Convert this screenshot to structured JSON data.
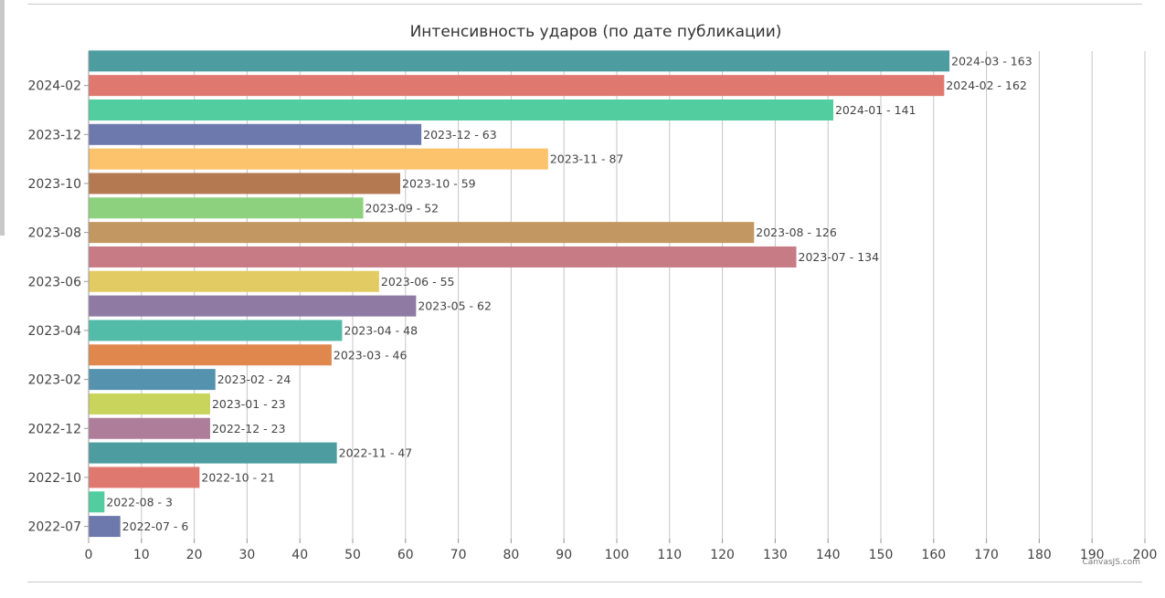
{
  "chart_data": {
    "type": "bar",
    "orientation": "horizontal",
    "title": "Интенсивность ударов (по дате публикации)",
    "xlabel": "",
    "ylabel": "",
    "xlim": [
      0,
      200
    ],
    "x_ticks": [
      0,
      10,
      20,
      30,
      40,
      50,
      60,
      70,
      80,
      90,
      100,
      110,
      120,
      130,
      140,
      150,
      160,
      170,
      180,
      190,
      200
    ],
    "grid": true,
    "categories": [
      "2022-07",
      "2022-08",
      "2022-10",
      "2022-11",
      "2022-12",
      "2023-01",
      "2023-02",
      "2023-03",
      "2023-04",
      "2023-05",
      "2023-06",
      "2023-07",
      "2023-08",
      "2023-09",
      "2023-10",
      "2023-11",
      "2023-12",
      "2024-01",
      "2024-02",
      "2024-03"
    ],
    "values": [
      6,
      3,
      21,
      47,
      23,
      23,
      24,
      46,
      48,
      62,
      55,
      134,
      126,
      52,
      59,
      87,
      63,
      141,
      162,
      163
    ],
    "data_labels": [
      "2022-07 - 6",
      "2022-08 - 3",
      "2022-10 - 21",
      "2022-11 - 47",
      "2022-12 - 23",
      "2023-01 - 23",
      "2023-02 - 24",
      "2023-03 - 46",
      "2023-04 - 48",
      "2023-05 - 62",
      "2023-06 - 55",
      "2023-07 - 134",
      "2023-08 - 126",
      "2023-09 - 52",
      "2023-10 - 59",
      "2023-11 - 87",
      "2023-12 - 63",
      "2024-01 - 141",
      "2024-02 - 162",
      "2024-03 - 163"
    ],
    "y_tick_labels": [
      "2022-07",
      "2022-10",
      "2022-12",
      "2023-02",
      "2023-04",
      "2023-06",
      "2023-08",
      "2023-10",
      "2023-12",
      "2024-02"
    ],
    "colors": [
      "#6D78AD",
      "#51CDA0",
      "#DF7970",
      "#4C9CA0",
      "#AE7D99",
      "#C9D45C",
      "#5592AD",
      "#DF874D",
      "#52BCA8",
      "#8E7AA3",
      "#E3CB64",
      "#C77B85",
      "#C39762",
      "#8DD17E",
      "#B57952",
      "#FCC26C",
      "#6D78AD",
      "#51CDA0",
      "#DF7970",
      "#4C9CA0"
    ],
    "credit": "CanvasJS.com"
  }
}
